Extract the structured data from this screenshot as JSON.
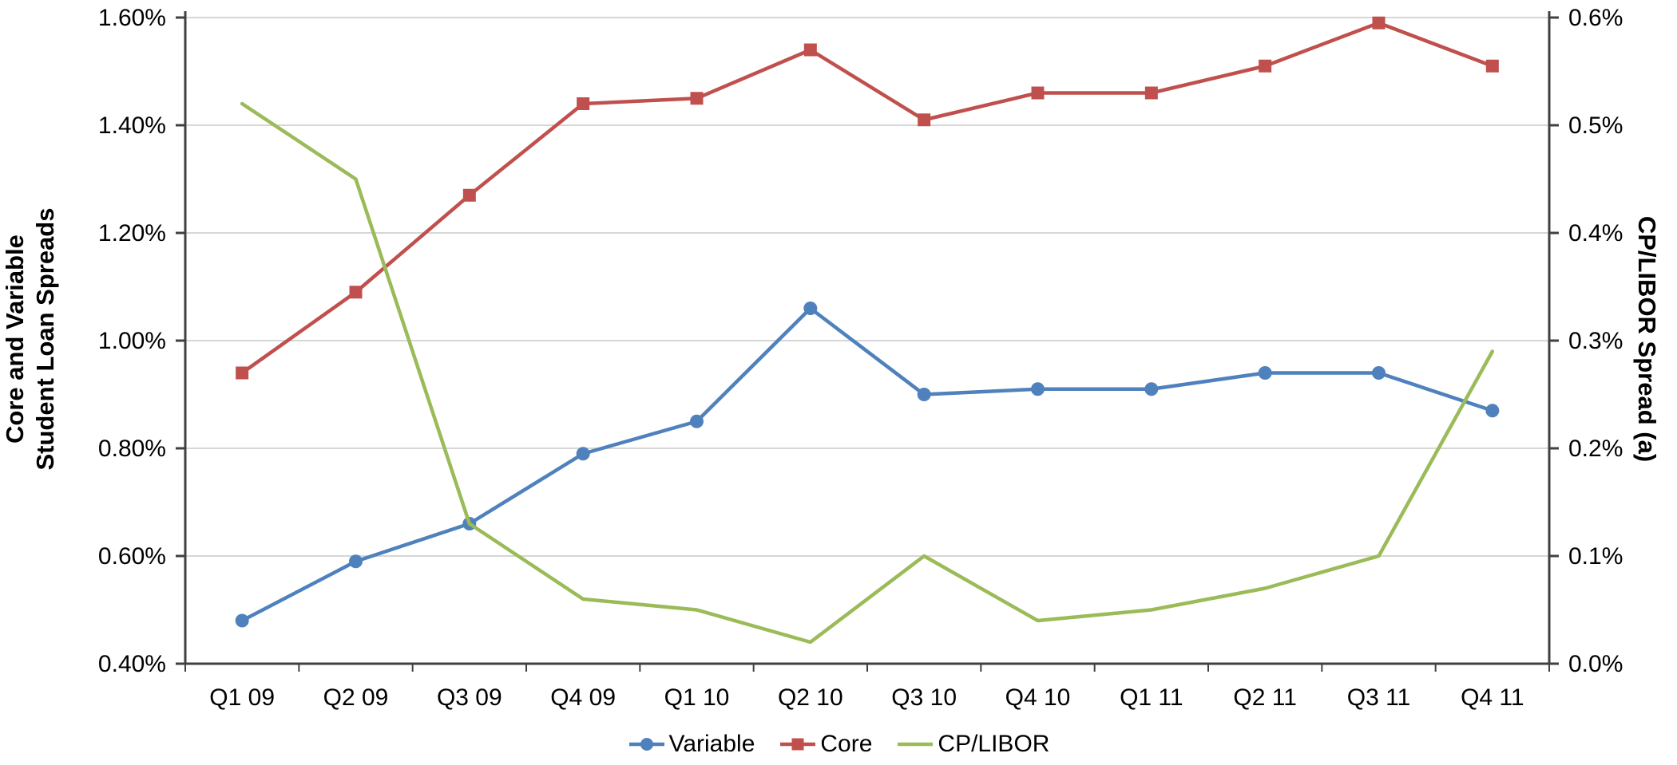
{
  "chart_data": {
    "type": "line",
    "title": "",
    "categories": [
      "Q1 09",
      "Q2 09",
      "Q3 09",
      "Q4 09",
      "Q1 10",
      "Q2 10",
      "Q3 10",
      "Q4 10",
      "Q1 11",
      "Q2 11",
      "Q3 11",
      "Q4 11"
    ],
    "series": [
      {
        "name": "Variable",
        "axis": "left",
        "color": "#4F81BD",
        "marker": "circle",
        "values": [
          0.48,
          0.59,
          0.66,
          0.79,
          0.85,
          1.06,
          0.9,
          0.91,
          0.91,
          0.94,
          0.94,
          0.87
        ]
      },
      {
        "name": "Core",
        "axis": "left",
        "color": "#C0504D",
        "marker": "square",
        "values": [
          0.94,
          1.09,
          1.27,
          1.44,
          1.45,
          1.54,
          1.41,
          1.46,
          1.46,
          1.51,
          1.59,
          1.51
        ]
      },
      {
        "name": "CP/LIBOR",
        "axis": "right",
        "color": "#9BBB59",
        "marker": "none",
        "values": [
          0.52,
          0.45,
          0.13,
          0.06,
          0.05,
          0.02,
          0.1,
          0.04,
          0.05,
          0.07,
          0.1,
          0.29
        ]
      }
    ],
    "left_axis": {
      "title_line1": "Core and Variable",
      "title_line2": "Student Loan Spreads",
      "min": 0.4,
      "max": 1.6,
      "units": "percent",
      "ticks": [
        {
          "label": "1.60%",
          "value": 1.6
        },
        {
          "label": "1.40%",
          "value": 1.4
        },
        {
          "label": "1.20%",
          "value": 1.2
        },
        {
          "label": "1.00%",
          "value": 1.0
        },
        {
          "label": "0.80%",
          "value": 0.8
        },
        {
          "label": "0.60%",
          "value": 0.6
        },
        {
          "label": "0.40%",
          "value": 0.4
        }
      ]
    },
    "right_axis": {
      "title": "CP/LIBOR Spread (a)",
      "min": 0.0,
      "max": 0.6,
      "units": "percent",
      "ticks": [
        {
          "label": "0.6%",
          "value": 0.6
        },
        {
          "label": "0.5%",
          "value": 0.5
        },
        {
          "label": "0.4%",
          "value": 0.4
        },
        {
          "label": "0.3%",
          "value": 0.3
        },
        {
          "label": "0.2%",
          "value": 0.2
        },
        {
          "label": "0.1%",
          "value": 0.1
        },
        {
          "label": "0.0%",
          "value": 0.0
        }
      ]
    },
    "legend": {
      "position": "bottom",
      "entries": [
        "Variable",
        "Core",
        "CP/LIBOR"
      ]
    },
    "grid": true,
    "style": {
      "grid_color": "#D6D6D6",
      "axis_color": "#404040",
      "text_color": "#000000",
      "background": "#FFFFFF"
    }
  }
}
